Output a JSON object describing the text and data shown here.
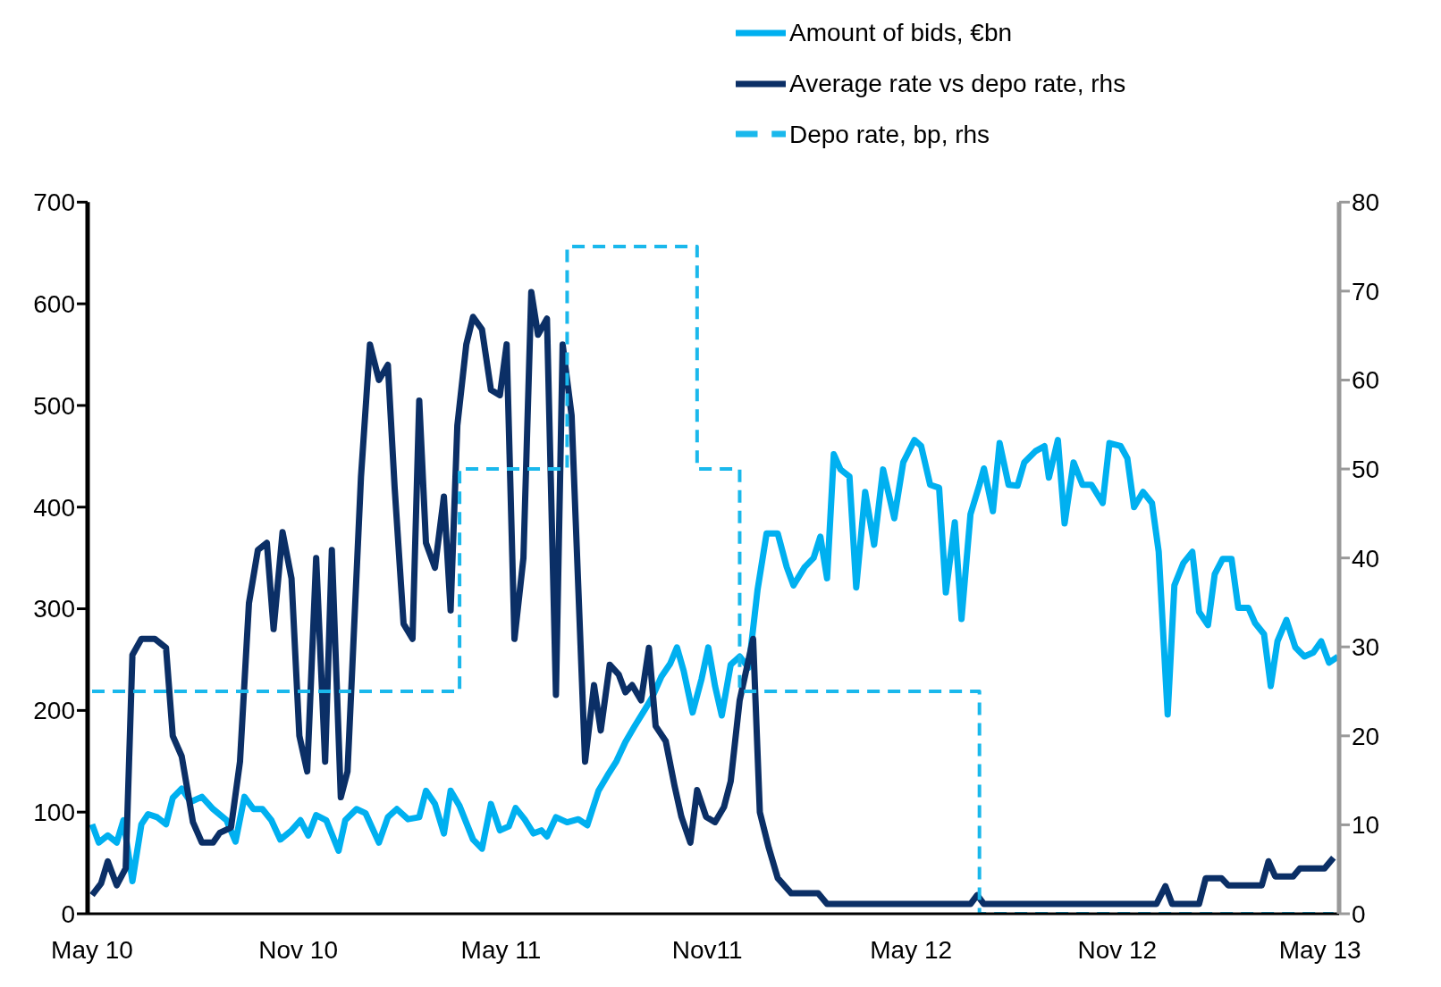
{
  "chart_data": {
    "type": "line",
    "xlim": [
      "2010-04-27",
      "2013-05-18"
    ],
    "xticks": [
      {
        "value": "2010-05-01",
        "label": "May 10"
      },
      {
        "value": "2010-11-01",
        "label": "Nov 10"
      },
      {
        "value": "2011-05-01",
        "label": "May 11"
      },
      {
        "value": "2011-11-01",
        "label": "Nov11"
      },
      {
        "value": "2012-05-01",
        "label": "May 12"
      },
      {
        "value": "2012-11-01",
        "label": "Nov 12"
      },
      {
        "value": "2013-05-01",
        "label": "May 13"
      }
    ],
    "ylim": [
      0,
      700
    ],
    "yticks": [
      0,
      100,
      200,
      300,
      400,
      500,
      600,
      700
    ],
    "y2lim": [
      0,
      80
    ],
    "y2ticks": [
      0,
      10,
      20,
      30,
      40,
      50,
      60,
      70,
      80
    ],
    "legend": "top right",
    "series": [
      {
        "name": "Amount of bids, €bn",
        "color": "#00b0f0",
        "line_style": "solid",
        "x": [
          "2010-05-01",
          "2010-05-07",
          "2010-05-15",
          "2010-05-23",
          "2010-05-29",
          "2010-06-06",
          "2010-06-14",
          "2010-06-20",
          "2010-06-28",
          "2010-07-06",
          "2010-07-12",
          "2010-07-20",
          "2010-07-28",
          "2010-08-07",
          "2010-08-17",
          "2010-08-29",
          "2010-09-06",
          "2010-09-14",
          "2010-09-22",
          "2010-09-30",
          "2010-10-08",
          "2010-10-16",
          "2010-10-26",
          "2010-11-03",
          "2010-11-10",
          "2010-11-17",
          "2010-11-26",
          "2010-12-07",
          "2010-12-13",
          "2010-12-23",
          "2010-12-31",
          "2011-01-12",
          "2011-01-20",
          "2011-01-28",
          "2011-02-07",
          "2011-02-17",
          "2011-02-23",
          "2011-03-03",
          "2011-03-11",
          "2011-03-17",
          "2011-03-25",
          "2011-04-06",
          "2011-04-14",
          "2011-04-22",
          "2011-04-30",
          "2011-05-08",
          "2011-05-14",
          "2011-05-22",
          "2011-05-30",
          "2011-06-06",
          "2011-06-11",
          "2011-06-19",
          "2011-06-29",
          "2011-07-09",
          "2011-07-17",
          "2011-07-27",
          "2011-08-04",
          "2011-08-12",
          "2011-08-20",
          "2011-08-28",
          "2011-09-07",
          "2011-09-13",
          "2011-09-21",
          "2011-09-29",
          "2011-10-05",
          "2011-10-11",
          "2011-10-19",
          "2011-10-27",
          "2011-11-02",
          "2011-11-08",
          "2011-11-14",
          "2011-11-22",
          "2011-11-30",
          "2011-12-08",
          "2011-12-16",
          "2011-12-24",
          "2012-01-03",
          "2012-01-11",
          "2012-01-17",
          "2012-01-27",
          "2012-02-04",
          "2012-02-10",
          "2012-02-16",
          "2012-02-22",
          "2012-02-28",
          "2012-03-07",
          "2012-03-13",
          "2012-03-21",
          "2012-03-29",
          "2012-04-06",
          "2012-04-16",
          "2012-04-24",
          "2012-05-04",
          "2012-05-10",
          "2012-05-18",
          "2012-05-26",
          "2012-06-01",
          "2012-06-09",
          "2012-06-15",
          "2012-06-23",
          "2012-07-01",
          "2012-07-05",
          "2012-07-13",
          "2012-07-19",
          "2012-07-27",
          "2012-08-04",
          "2012-08-10",
          "2012-08-20",
          "2012-08-28",
          "2012-09-01",
          "2012-09-09",
          "2012-09-15",
          "2012-09-23",
          "2012-10-01",
          "2012-10-09",
          "2012-10-19",
          "2012-10-25",
          "2012-11-04",
          "2012-11-10",
          "2012-11-16",
          "2012-11-24",
          "2012-12-02",
          "2012-12-08",
          "2012-12-16",
          "2012-12-22",
          "2012-12-30",
          "2013-01-07",
          "2013-01-13",
          "2013-01-21",
          "2013-01-27",
          "2013-02-03",
          "2013-02-11",
          "2013-02-17",
          "2013-02-26",
          "2013-03-04",
          "2013-03-12",
          "2013-03-18",
          "2013-03-24",
          "2013-04-01",
          "2013-04-09",
          "2013-04-17",
          "2013-04-25",
          "2013-05-02",
          "2013-05-09",
          "2013-05-17"
        ],
        "values": [
          88,
          70,
          77,
          70,
          92,
          32,
          88,
          98,
          95,
          88,
          114,
          123,
          110,
          115,
          103,
          92,
          71,
          115,
          103,
          103,
          92,
          73,
          82,
          92,
          77,
          97,
          92,
          62,
          92,
          103,
          99,
          70,
          95,
          103,
          93,
          95,
          121,
          108,
          79,
          121,
          106,
          73,
          64,
          108,
          82,
          86,
          104,
          93,
          79,
          82,
          76,
          95,
          90,
          93,
          87,
          121,
          136,
          150,
          169,
          184,
          202,
          213,
          233,
          246,
          262,
          239,
          198,
          231,
          262,
          224,
          195,
          245,
          253,
          242,
          319,
          374,
          374,
          341,
          323,
          341,
          350,
          371,
          330,
          452,
          437,
          430,
          321,
          415,
          363,
          437,
          389,
          444,
          466,
          460,
          422,
          419,
          316,
          385,
          290,
          393,
          422,
          438,
          396,
          463,
          422,
          421,
          444,
          455,
          460,
          429,
          466,
          384,
          444,
          422,
          422,
          404,
          463,
          460,
          448,
          400,
          415,
          404,
          356,
          196,
          323,
          345,
          356,
          297,
          284,
          334,
          349,
          349,
          301,
          301,
          286,
          275,
          224,
          268,
          289,
          262,
          253,
          257,
          268,
          247,
          253
        ]
      },
      {
        "name": "Average rate vs depo rate, rhs",
        "color": "#0b2f66",
        "line_style": "solid",
        "axis": "y2",
        "x": [
          "2010-05-01",
          "2010-05-09",
          "2010-05-15",
          "2010-05-23",
          "2010-05-31",
          "2010-06-06",
          "2010-06-14",
          "2010-06-26",
          "2010-07-06",
          "2010-07-12",
          "2010-07-20",
          "2010-07-30",
          "2010-08-07",
          "2010-08-17",
          "2010-08-23",
          "2010-09-02",
          "2010-09-10",
          "2010-09-18",
          "2010-09-26",
          "2010-10-04",
          "2010-10-10",
          "2010-10-18",
          "2010-10-26",
          "2010-11-02",
          "2010-11-09",
          "2010-11-17",
          "2010-11-25",
          "2010-12-01",
          "2010-12-09",
          "2010-12-15",
          "2010-12-27",
          "2011-01-04",
          "2011-01-12",
          "2011-01-20",
          "2011-01-26",
          "2011-02-03",
          "2011-02-11",
          "2011-02-17",
          "2011-02-23",
          "2011-03-03",
          "2011-03-11",
          "2011-03-17",
          "2011-03-23",
          "2011-03-31",
          "2011-04-06",
          "2011-04-14",
          "2011-04-22",
          "2011-04-30",
          "2011-05-06",
          "2011-05-13",
          "2011-05-21",
          "2011-05-28",
          "2011-06-03",
          "2011-06-11",
          "2011-06-19",
          "2011-06-25",
          "2011-07-03",
          "2011-07-15",
          "2011-07-23",
          "2011-07-29",
          "2011-08-06",
          "2011-08-14",
          "2011-08-20",
          "2011-08-26",
          "2011-09-03",
          "2011-09-10",
          "2011-09-16",
          "2011-09-25",
          "2011-10-03",
          "2011-10-09",
          "2011-10-17",
          "2011-10-23",
          "2011-10-31",
          "2011-11-08",
          "2011-11-16",
          "2011-11-22",
          "2011-11-30",
          "2011-12-12",
          "2011-12-18",
          "2011-12-26",
          "2012-01-03",
          "2012-01-15",
          "2012-02-08",
          "2012-02-16",
          "2012-06-23",
          "2012-06-29",
          "2012-07-05",
          "2012-12-06",
          "2012-12-14",
          "2012-12-20",
          "2013-01-13",
          "2013-01-19",
          "2013-02-02",
          "2013-02-08",
          "2013-03-10",
          "2013-03-16",
          "2013-03-22",
          "2013-04-07",
          "2013-04-13",
          "2013-05-05",
          "2013-05-13"
        ],
        "values": [
          2.1,
          3.4,
          5.9,
          3.2,
          5.1,
          29.1,
          30.9,
          30.9,
          29.9,
          20,
          17.7,
          10.3,
          8,
          8,
          9.1,
          9.7,
          17.1,
          34.9,
          40.9,
          41.7,
          32,
          42.9,
          37.7,
          20,
          16,
          40,
          17.1,
          40.9,
          13.1,
          16,
          49.1,
          64,
          60,
          61.7,
          48,
          32.6,
          30.9,
          57.7,
          41.7,
          38.9,
          46.9,
          34.1,
          54.9,
          64,
          67.1,
          65.7,
          58.9,
          58.3,
          64,
          30.9,
          40,
          69.9,
          65.1,
          66.9,
          24.6,
          64,
          56,
          17.1,
          25.7,
          20.6,
          28,
          26.9,
          24.9,
          25.7,
          24,
          29.9,
          21.1,
          19.4,
          14.3,
          10.9,
          8,
          13.9,
          10.9,
          10.3,
          12,
          14.9,
          24,
          30.9,
          11.4,
          7.4,
          4,
          2.3,
          2.3,
          1.1,
          1.1,
          2.1,
          1.1,
          1.1,
          3.1,
          1.1,
          1.1,
          4,
          4,
          3.2,
          3.2,
          5.9,
          4.2,
          4.2,
          5.1,
          5.1,
          6.3
        ]
      },
      {
        "name": "Depo rate, bp, rhs",
        "color": "#1ab8ec",
        "type": "step",
        "line_style": "dashed",
        "axis": "y2",
        "x": [
          "2010-05-01",
          "2011-03-25",
          "2011-06-29",
          "2011-10-23",
          "2011-11-30",
          "2012-07-01",
          "2013-05-13"
        ],
        "values": [
          25,
          50,
          75,
          50,
          25,
          0,
          0
        ]
      }
    ]
  }
}
